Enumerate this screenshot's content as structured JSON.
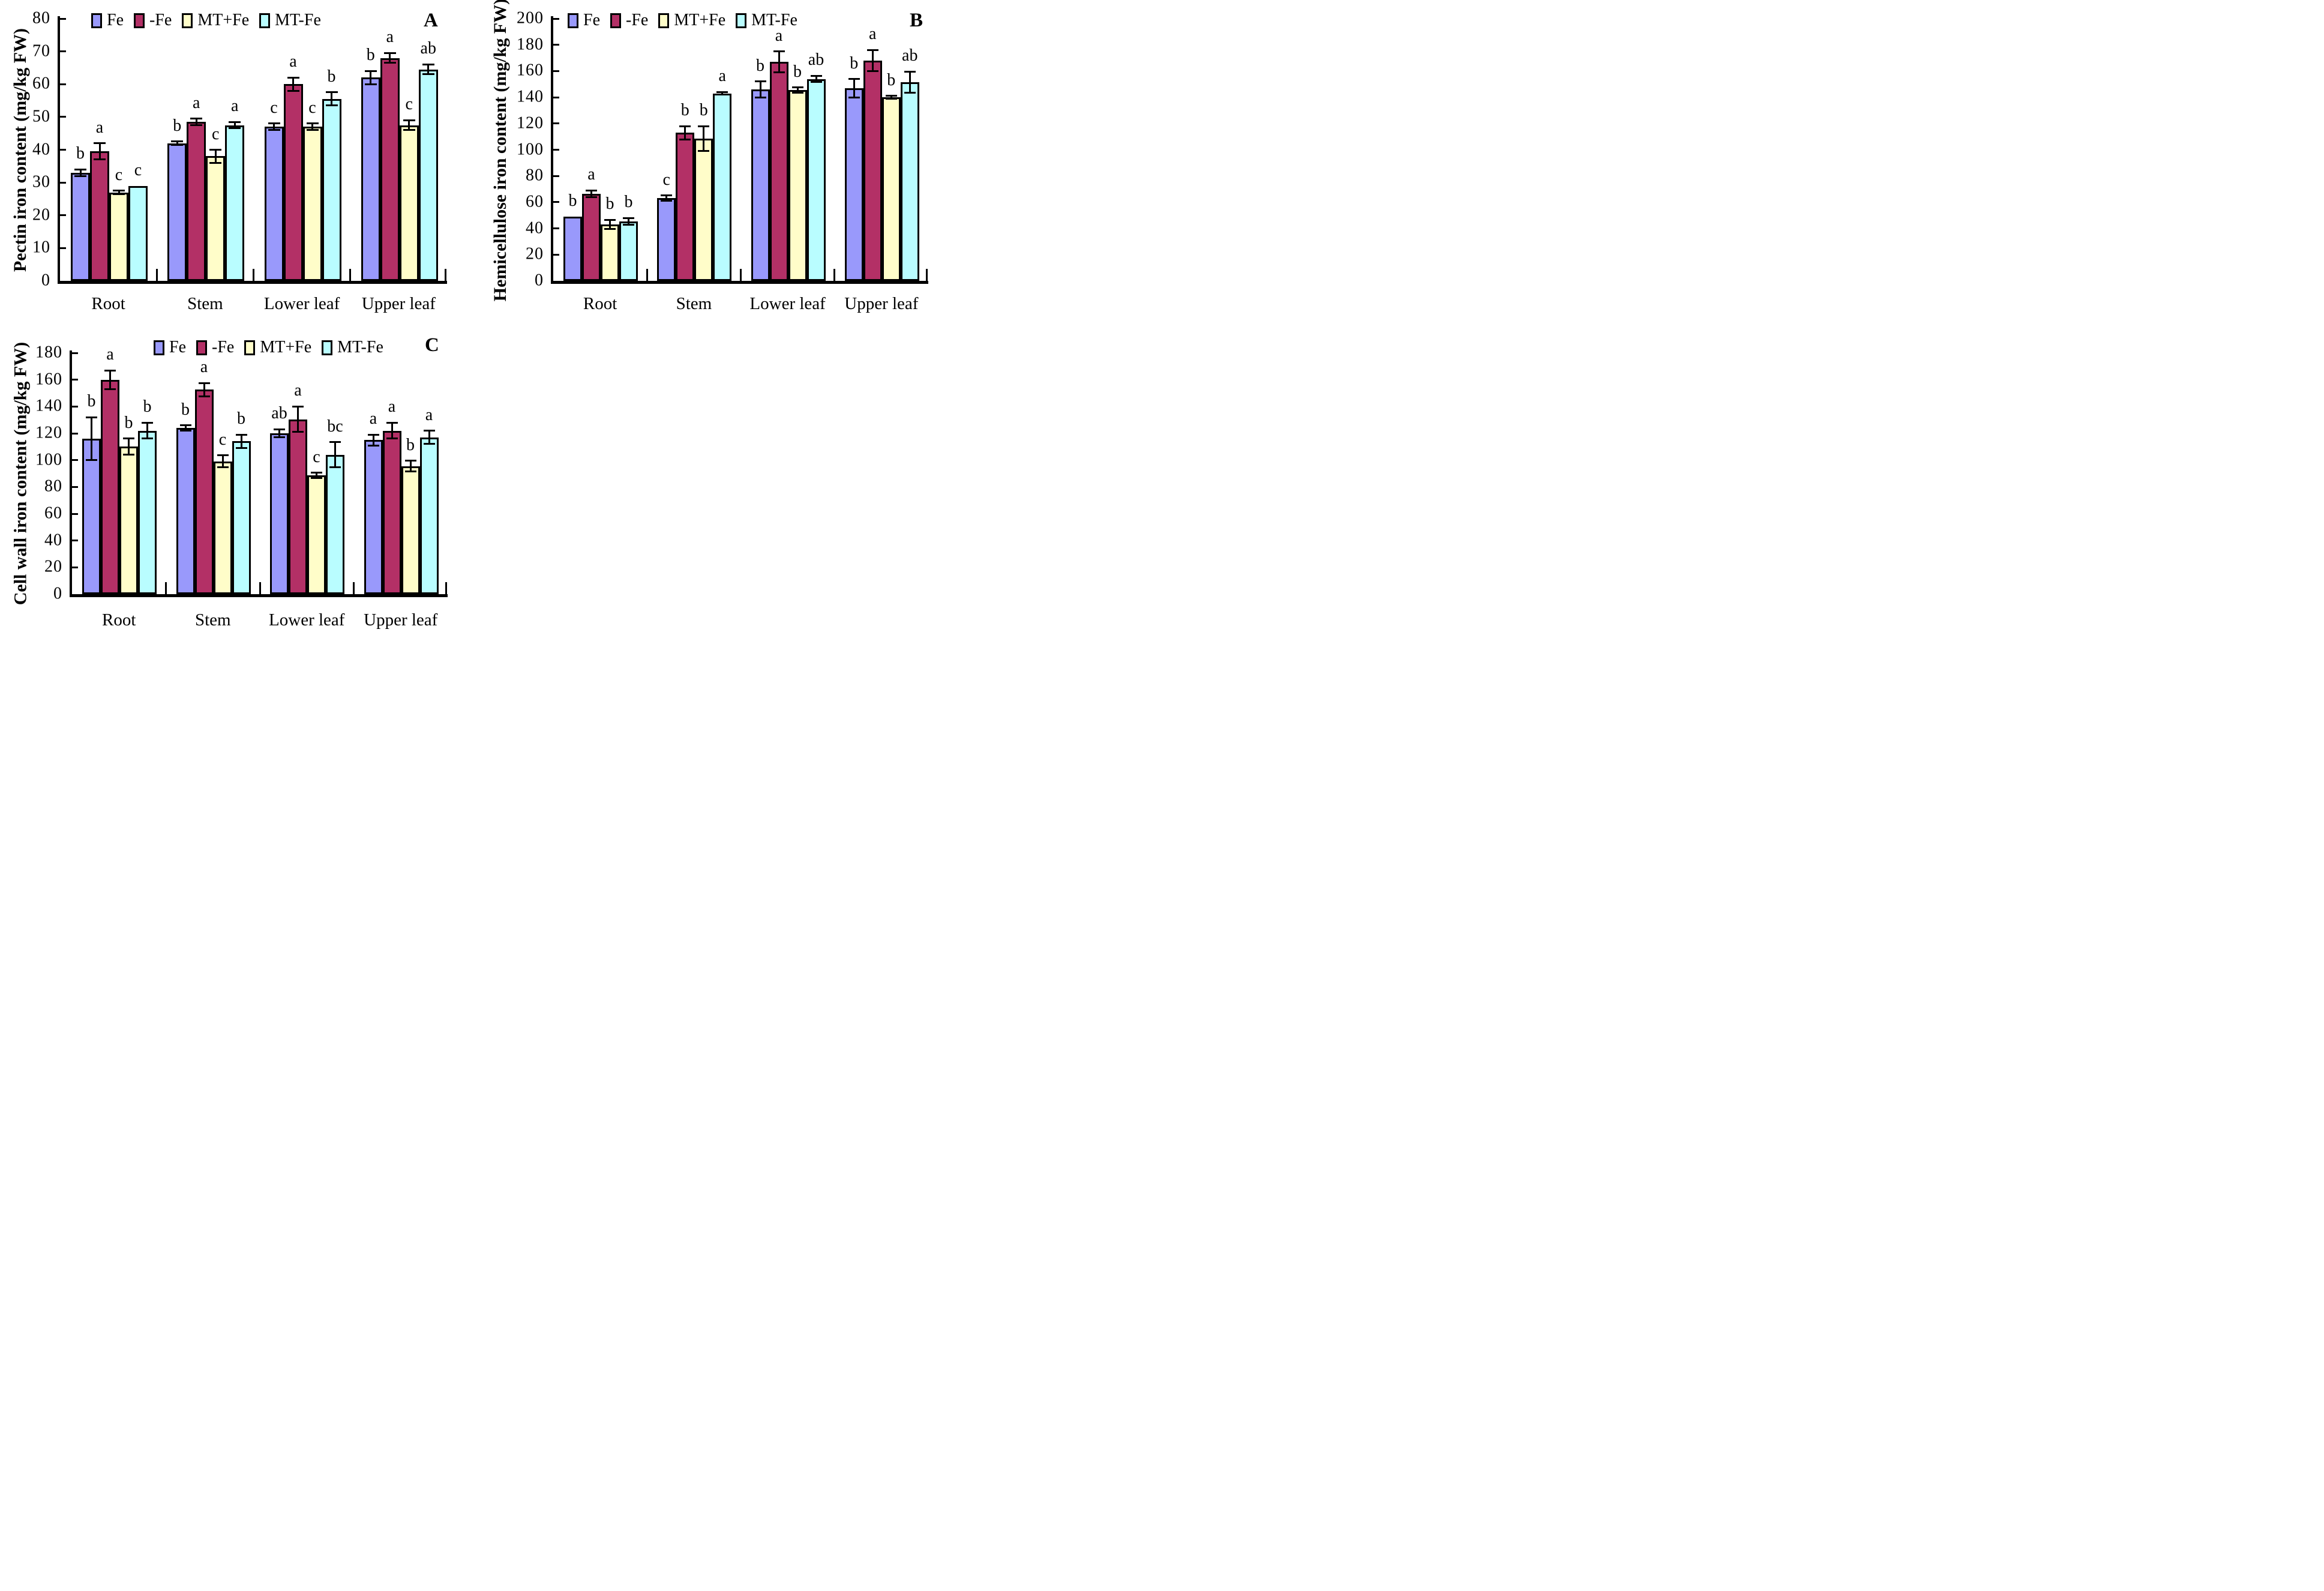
{
  "treatments": [
    "Fe",
    "-Fe",
    "MT+Fe",
    "MT-Fe"
  ],
  "categories": [
    "Root",
    "Stem",
    "Lower leaf",
    "Upper leaf"
  ],
  "colors": {
    "fe": "#9999FB",
    "minus_fe": "#B33066",
    "mt_plus_fe": "#FFFDC9",
    "mt_minus_fe": "#B9FDFF",
    "axis": "#000000",
    "background": "#FFFFFF"
  },
  "chart_data": [
    {
      "type": "bar",
      "panel_label": "A",
      "title": "",
      "xlabel": "",
      "ylabel": "Pectin iron content (mg/kg FW)",
      "ylim": [
        0,
        80
      ],
      "ytick_step": 10,
      "grid": false,
      "legend_position": "top-inside",
      "categories": [
        "Root",
        "Stem",
        "Lower leaf",
        "Upper leaf"
      ],
      "series": [
        {
          "name": "Fe",
          "color": "#9999FB",
          "values": [
            33,
            42,
            47,
            62
          ],
          "errors": [
            1,
            0.5,
            1,
            2
          ],
          "sig_letters": [
            "b",
            "b",
            "c",
            "b"
          ]
        },
        {
          "name": "-Fe",
          "color": "#B33066",
          "values": [
            39.5,
            48.5,
            60,
            68
          ],
          "errors": [
            2.5,
            1,
            2,
            1.5
          ],
          "sig_letters": [
            "a",
            "a",
            "a",
            "a"
          ]
        },
        {
          "name": "MT+Fe",
          "color": "#FFFDC9",
          "values": [
            27,
            38,
            47,
            47.5
          ],
          "errors": [
            0.5,
            2,
            1,
            1.5
          ],
          "sig_letters": [
            "c",
            "c",
            "c",
            "c"
          ]
        },
        {
          "name": "MT-Fe",
          "color": "#B9FDFF",
          "values": [
            29,
            47.5,
            55.5,
            64.5
          ],
          "errors": [
            0,
            1,
            2,
            1.5
          ],
          "sig_letters": [
            "c",
            "a",
            "b",
            "ab"
          ]
        }
      ]
    },
    {
      "type": "bar",
      "panel_label": "B",
      "title": "",
      "xlabel": "",
      "ylabel": "Hemicellulose iron content (mg/kg FW)",
      "ylim": [
        0,
        200
      ],
      "ytick_step": 20,
      "grid": false,
      "legend_position": "top-inside",
      "categories": [
        "Root",
        "Stem",
        "Lower leaf",
        "Upper leaf"
      ],
      "series": [
        {
          "name": "Fe",
          "color": "#9999FB",
          "values": [
            49,
            63,
            146,
            147
          ],
          "errors": [
            0,
            2,
            6,
            7
          ],
          "sig_letters": [
            "b",
            "c",
            "b",
            "b"
          ]
        },
        {
          "name": "-Fe",
          "color": "#B33066",
          "values": [
            66.5,
            113,
            167,
            168
          ],
          "errors": [
            2.5,
            5,
            8,
            8
          ],
          "sig_letters": [
            "a",
            "b",
            "a",
            "a"
          ]
        },
        {
          "name": "MT+Fe",
          "color": "#FFFDC9",
          "values": [
            43,
            108.5,
            145.5,
            140
          ],
          "errors": [
            3.5,
            9.5,
            2,
            1
          ],
          "sig_letters": [
            "b",
            "b",
            "b",
            "b"
          ]
        },
        {
          "name": "MT-Fe",
          "color": "#B9FDFF",
          "values": [
            45.5,
            143,
            154,
            151.5
          ],
          "errors": [
            2.5,
            1,
            2.5,
            8
          ],
          "sig_letters": [
            "b",
            "a",
            "ab",
            "ab"
          ]
        }
      ]
    },
    {
      "type": "bar",
      "panel_label": "C",
      "title": "",
      "xlabel": "",
      "ylabel": "Cell wall iron content (mg/kg FW)",
      "ylim": [
        0,
        180
      ],
      "ytick_step": 20,
      "grid": false,
      "legend_position": "top-inside",
      "categories": [
        "Root",
        "Stem",
        "Lower leaf",
        "Upper leaf"
      ],
      "series": [
        {
          "name": "Fe",
          "color": "#9999FB",
          "values": [
            116,
            124,
            120,
            115
          ],
          "errors": [
            16,
            2,
            3,
            4
          ],
          "sig_letters": [
            "b",
            "b",
            "ab",
            "a"
          ]
        },
        {
          "name": "-Fe",
          "color": "#B33066",
          "values": [
            160,
            152.5,
            130.5,
            122
          ],
          "errors": [
            7,
            5,
            9.5,
            6
          ],
          "sig_letters": [
            "a",
            "a",
            "a",
            "a"
          ]
        },
        {
          "name": "MT+Fe",
          "color": "#FFFDC9",
          "values": [
            110,
            99,
            88.5,
            95.5
          ],
          "errors": [
            6,
            4.5,
            2,
            4
          ],
          "sig_letters": [
            "b",
            "c",
            "c",
            "b"
          ]
        },
        {
          "name": "MT-Fe",
          "color": "#B9FDFF",
          "values": [
            122,
            114,
            104,
            117
          ],
          "errors": [
            6,
            5,
            9.5,
            5
          ],
          "sig_letters": [
            "b",
            "b",
            "bc",
            "a"
          ]
        }
      ]
    }
  ]
}
